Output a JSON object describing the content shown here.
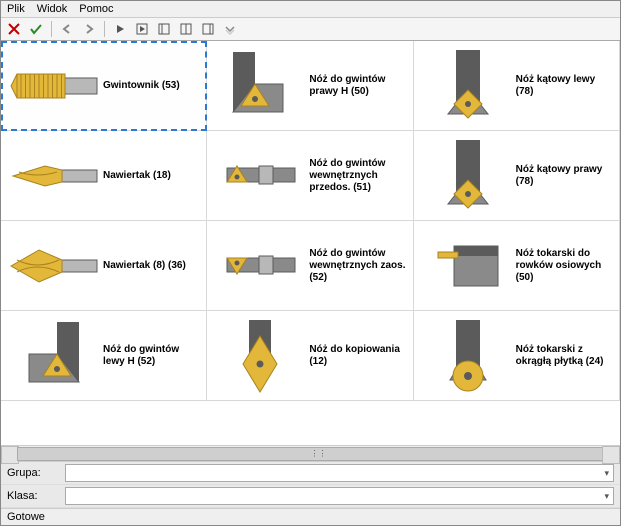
{
  "menu": {
    "file": "Plik",
    "view": "Widok",
    "help": "Pomoc"
  },
  "toolbar": {
    "close_color": "#c00000",
    "ok_color": "#2a8a2a",
    "icon_color": "#555555"
  },
  "filters": {
    "group_label": "Grupa:",
    "class_label": "Klasa:",
    "group_value": "",
    "class_value": ""
  },
  "status": "Gotowe",
  "items": [
    {
      "label": "Gwintownik (53)",
      "kind": "tap",
      "selected": true
    },
    {
      "label": "Nóż do gwintów prawy H (50)",
      "kind": "insert-tri",
      "selected": false
    },
    {
      "label": "Nóż kątowy lewy (78)",
      "kind": "insert-dia",
      "selected": false
    },
    {
      "label": "Nawiertak (18)",
      "kind": "drill-sm",
      "selected": false
    },
    {
      "label": "Nóż do gwintów wewnętrznych przedos. (51)",
      "kind": "bar-tri",
      "selected": false
    },
    {
      "label": "Nóż kątowy prawy (78)",
      "kind": "insert-dia",
      "selected": false
    },
    {
      "label": "Nawiertak (8) (36)",
      "kind": "drill-lg",
      "selected": false
    },
    {
      "label": "Nóż do gwintów wewnętrznych zaos. (52)",
      "kind": "bar-tri2",
      "selected": false
    },
    {
      "label": "Nóż tokarski do rowków osiowych (50)",
      "kind": "groove",
      "selected": false
    },
    {
      "label": "Nóż do gwintów lewy H (52)",
      "kind": "insert-tri2",
      "selected": false
    },
    {
      "label": "Nóż do kopiowania (12)",
      "kind": "insert-dia2",
      "selected": false
    },
    {
      "label": "Nóż tokarski z okrągłą płytką (24)",
      "kind": "insert-round",
      "selected": false
    }
  ],
  "palette": {
    "gold": "#e3b83a",
    "gold_d": "#a8821d",
    "steel": "#8a8a8a",
    "steel_l": "#b8b8b8",
    "steel_d": "#5b5b5b"
  }
}
